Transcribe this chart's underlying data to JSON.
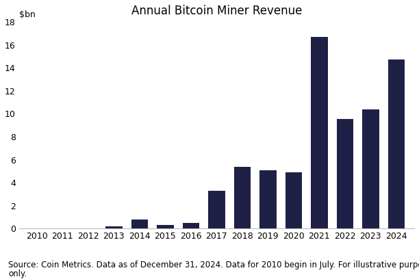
{
  "title": "Annual Bitcoin Miner Revenue",
  "ylabel": "$bn",
  "years": [
    2010,
    2011,
    2012,
    2013,
    2014,
    2015,
    2016,
    2017,
    2018,
    2019,
    2020,
    2021,
    2022,
    2023,
    2024
  ],
  "values": [
    0.0,
    0.0,
    0.0,
    0.22,
    0.77,
    0.3,
    0.5,
    3.3,
    5.4,
    5.1,
    4.9,
    16.7,
    9.55,
    10.4,
    14.7
  ],
  "bar_color": "#1e2145",
  "background_color": "#ffffff",
  "ylim": [
    0,
    18
  ],
  "yticks": [
    0,
    2,
    4,
    6,
    8,
    10,
    12,
    14,
    16,
    18
  ],
  "caption_line1": "Source: Coin Metrics. Data as of December 31, 2024. Data for 2010 begin in July. For illustrative purposes",
  "caption_line2": "only.",
  "title_fontsize": 12,
  "tick_fontsize": 9,
  "caption_fontsize": 8.5
}
